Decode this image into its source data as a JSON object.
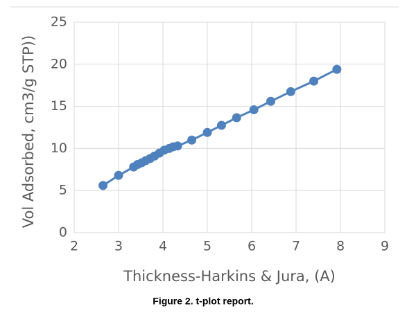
{
  "chart_data": {
    "type": "scatter-line",
    "xlabel": "Thickness-Harkins & Jura, (A)",
    "ylabel": "Vol Adsorbed, cm3/g STP))",
    "caption": "Figure 2. t-plot report.",
    "x": [
      2.65,
      3.0,
      3.34,
      3.43,
      3.52,
      3.61,
      3.71,
      3.81,
      3.92,
      4.03,
      4.14,
      4.23,
      4.33,
      4.65,
      5.0,
      5.32,
      5.66,
      6.05,
      6.43,
      6.88,
      7.4,
      7.92
    ],
    "series": [
      {
        "color": "#4f81bd",
        "values": [
          5.6,
          6.8,
          7.8,
          8.1,
          8.3,
          8.55,
          8.8,
          9.1,
          9.45,
          9.8,
          10.0,
          10.2,
          10.3,
          11.0,
          11.9,
          12.75,
          13.65,
          14.6,
          15.6,
          16.75,
          18.0,
          19.4
        ]
      }
    ],
    "xlim": [
      2,
      9
    ],
    "xticks": [
      2,
      3,
      4,
      5,
      6,
      7,
      8,
      9
    ],
    "ylim": [
      0,
      25
    ],
    "yticks": [
      0,
      5,
      10,
      15,
      20,
      25
    ],
    "grid": true
  }
}
